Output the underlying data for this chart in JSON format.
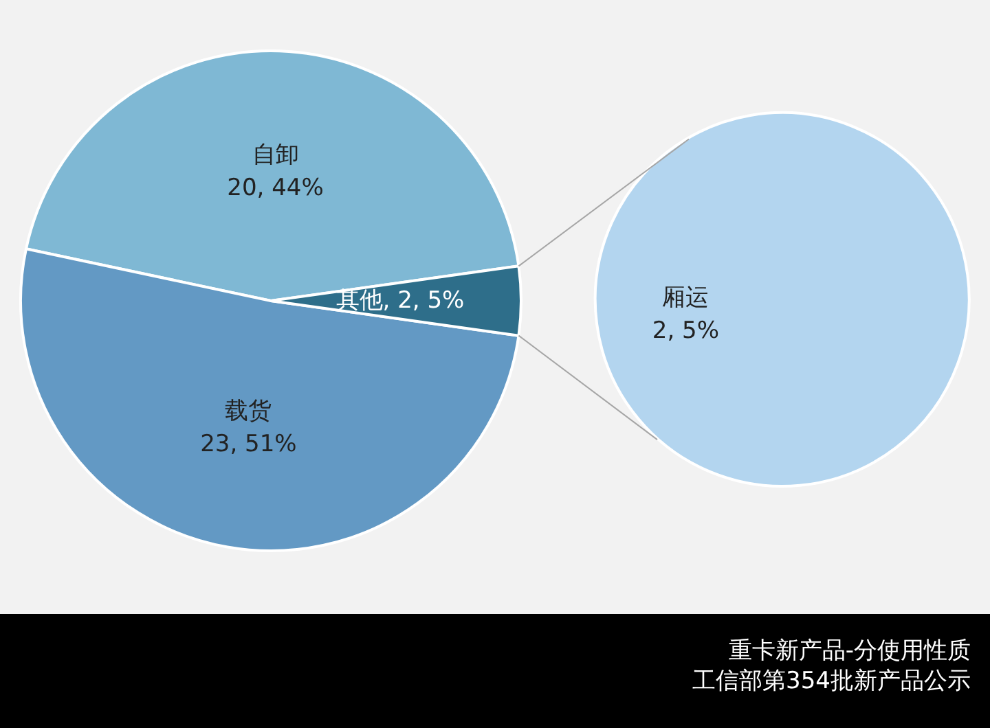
{
  "chart_data": [
    {
      "type": "pie",
      "title": "重卡新产品-分使用性质",
      "subtitle": "工信部第354批新产品公示",
      "categories": [
        "自卸",
        "载货",
        "其他"
      ],
      "values": [
        20,
        23,
        2
      ],
      "colors": [
        "#7fb8d4",
        "#6399c4",
        "#2e6e8a"
      ],
      "value_labels": [
        "20, 44%",
        "23, 51%",
        "2, 5%"
      ],
      "legend": false
    },
    {
      "type": "pie",
      "categories": [
        "厢运"
      ],
      "values": [
        2
      ],
      "colors": [
        "#b3d5ef"
      ],
      "value_labels": [
        "2, 5%"
      ],
      "legend": false
    }
  ]
}
